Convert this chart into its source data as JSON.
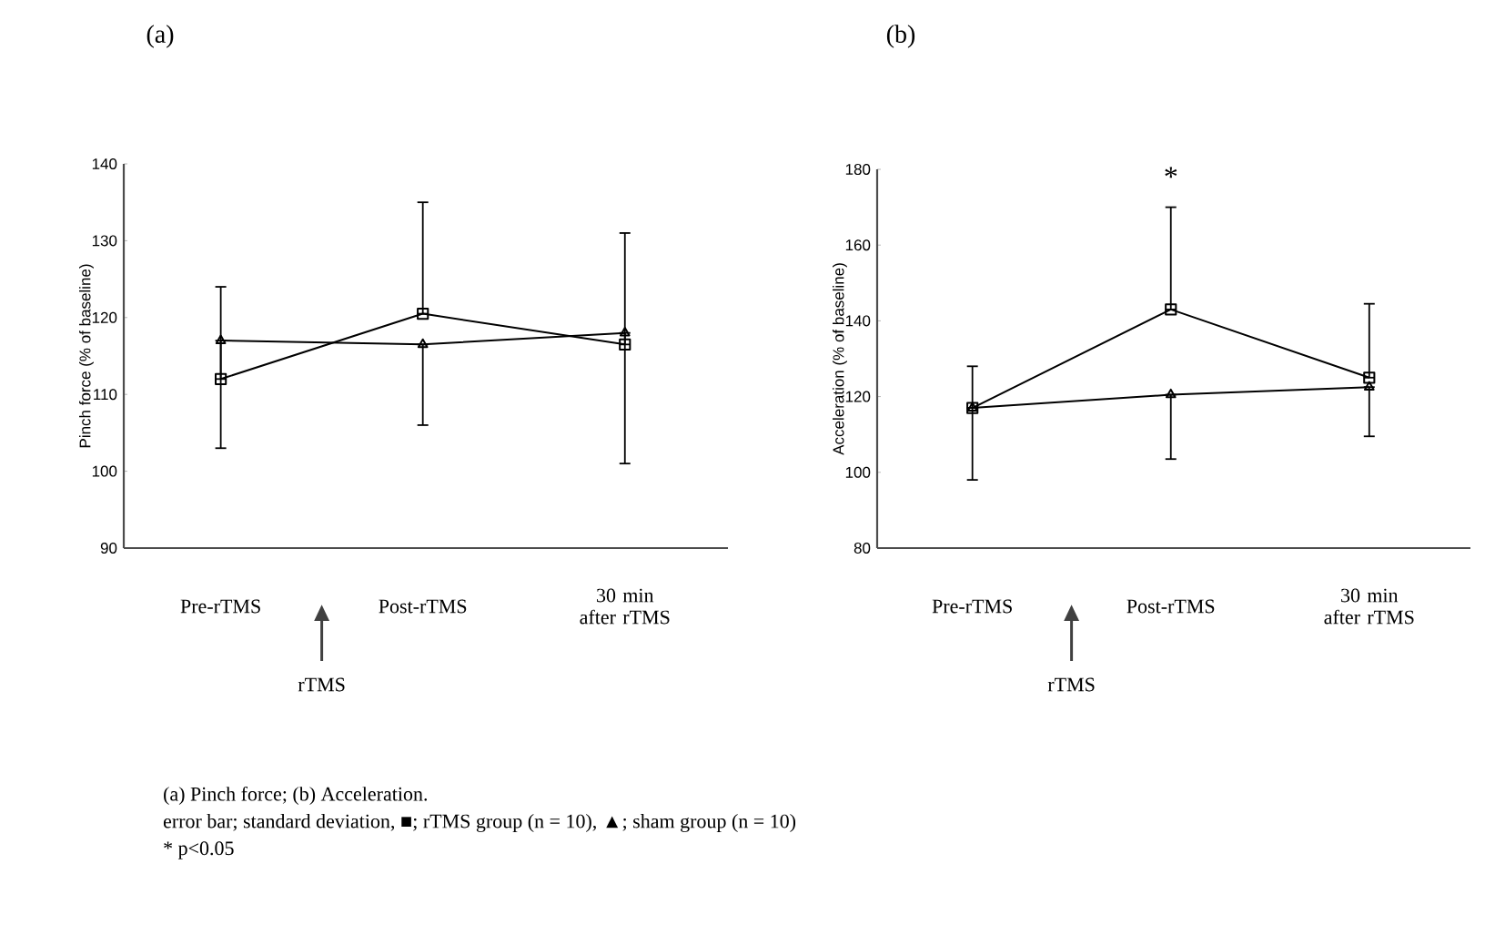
{
  "chart_data": [
    {
      "type": "line",
      "title": "(a)",
      "ylabel": "Pinch force (% of baseline)",
      "categories": [
        "Pre-rTMS",
        "Post-rTMS",
        "30 min after rTMS"
      ],
      "series": [
        {
          "color": "#000000",
          "marker": "square",
          "values": [
            112,
            120.5,
            116.5
          ],
          "errors": [
            [
              112,
              124
            ],
            [
              120.5,
              135
            ],
            [
              116.5,
              131
            ]
          ]
        },
        {
          "color": "#000000",
          "marker": "triangle",
          "values": [
            117,
            116.5,
            118
          ],
          "errors": [
            [
              103,
              117
            ],
            [
              106,
              116.5
            ],
            [
              101,
              118
            ]
          ]
        }
      ],
      "ylim": [
        90,
        140
      ],
      "yticks": [
        90,
        100,
        110,
        120,
        130,
        140
      ],
      "line_style": "solid",
      "annotations": [
        "rTMS",
        "(a) Pinch force; (b) Acceleration.",
        "error bar; standard deviation, ■; rTMS group (n = 10), ▲; sham group (n = 10)",
        "* p<0.05"
      ]
    },
    {
      "type": "line",
      "title": "(b)",
      "ylabel": "Acceleration (% of baseline)",
      "categories": [
        "Pre-rTMS",
        "Post-rTMS",
        "30 min after rTMS"
      ],
      "series": [
        {
          "color": "#000000",
          "marker": "square",
          "values": [
            117,
            143,
            125
          ],
          "errors": [
            [
              117,
              128
            ],
            [
              143,
              170
            ],
            [
              125,
              144.5
            ]
          ]
        },
        {
          "color": "#000000",
          "marker": "triangle",
          "values": [
            117,
            120.5,
            122.5
          ],
          "errors": [
            [
              98,
              117
            ],
            [
              103.5,
              120.5
            ],
            [
              109.5,
              122.5
            ]
          ]
        }
      ],
      "ylim": [
        80,
        180
      ],
      "yticks": [
        80,
        100,
        120,
        140,
        160,
        180
      ],
      "line_style": "solid",
      "annotations": [
        "rTMS",
        "*"
      ]
    }
  ]
}
